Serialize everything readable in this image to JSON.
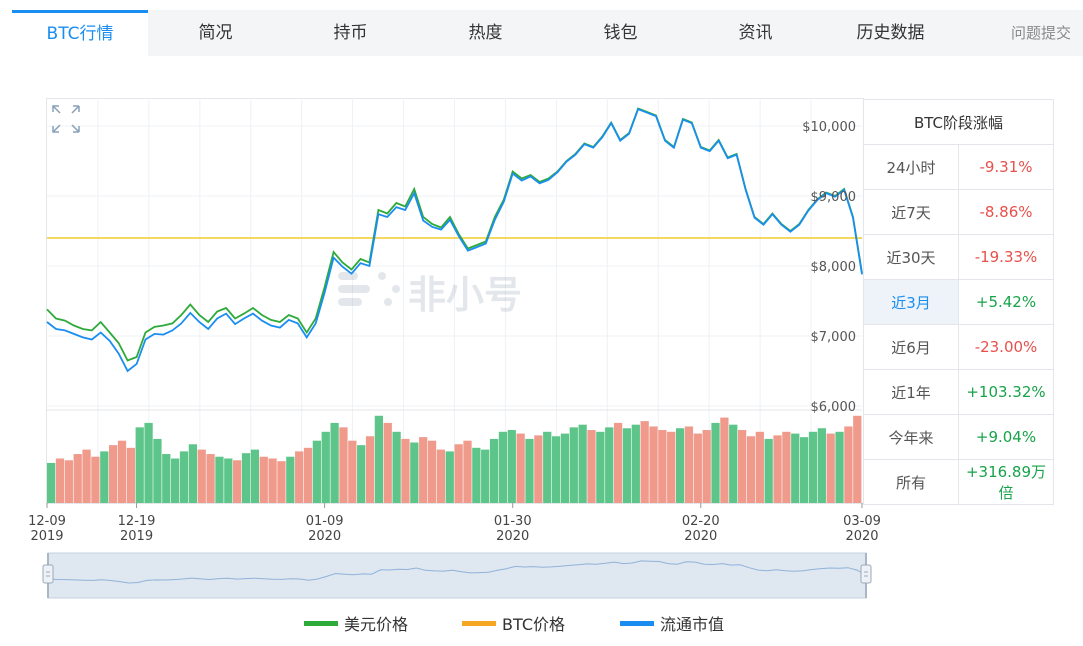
{
  "tabs": [
    {
      "label": "BTC行情",
      "active": true
    },
    {
      "label": "简况"
    },
    {
      "label": "持币"
    },
    {
      "label": "热度"
    },
    {
      "label": "钱包"
    },
    {
      "label": "资讯"
    },
    {
      "label": "历史数据"
    }
  ],
  "report_link": "问题提交",
  "watermark": "非小号",
  "colors": {
    "usd_line": "#2eaa3a",
    "btc_line": "#f5a623",
    "mcap_line": "#1a8ef0",
    "ref_line": "#f2cc2a",
    "vol_up": "#5ec58a",
    "vol_down": "#f09a8c",
    "accent": "#1a8ef0"
  },
  "chart_data": {
    "type": "line",
    "y_ticks": [
      "$10,000",
      "$9,000",
      "$8,000",
      "$7,000",
      "$6,000"
    ],
    "y_tick_values": [
      10000,
      9000,
      8000,
      7000,
      6000
    ],
    "ylim": [
      6000,
      10400
    ],
    "x_ticks": [
      {
        "date": "12-09",
        "year": "2019",
        "day": 0
      },
      {
        "date": "12-19",
        "year": "2019",
        "day": 10
      },
      {
        "date": "01-09",
        "year": "2020",
        "day": 31
      },
      {
        "date": "01-30",
        "year": "2020",
        "day": 52
      },
      {
        "date": "02-20",
        "year": "2020",
        "day": 73
      },
      {
        "date": "03-09",
        "year": "2020",
        "day": 91
      }
    ],
    "reference_price": 8400,
    "series": [
      {
        "name": "美元价格",
        "x": [
          0,
          1,
          2,
          3,
          4,
          5,
          6,
          7,
          8,
          9,
          10,
          11,
          12,
          13,
          14,
          15,
          16,
          17,
          18,
          19,
          20,
          21,
          22,
          23,
          24,
          25,
          26,
          27,
          28,
          29,
          30,
          31,
          32,
          33,
          34,
          35,
          36,
          37,
          38,
          39,
          40,
          41,
          42,
          43,
          44,
          45,
          46,
          47,
          48,
          49,
          50,
          51,
          52,
          53,
          54,
          55,
          56,
          57,
          58,
          59,
          60,
          61,
          62,
          63,
          64,
          65,
          66,
          67,
          68,
          69,
          70,
          71,
          72,
          73,
          74,
          75,
          76,
          77,
          78,
          79,
          80,
          81,
          82,
          83,
          84,
          85,
          86,
          87,
          88,
          89,
          90,
          91
        ],
        "values": [
          7380,
          7250,
          7220,
          7150,
          7100,
          7080,
          7200,
          7050,
          6900,
          6650,
          6700,
          7050,
          7130,
          7150,
          7180,
          7300,
          7450,
          7300,
          7200,
          7350,
          7400,
          7250,
          7320,
          7400,
          7300,
          7230,
          7200,
          7300,
          7250,
          7050,
          7250,
          7700,
          8200,
          8050,
          7950,
          8100,
          8050,
          8800,
          8750,
          8900,
          8850,
          9100,
          8700,
          8600,
          8550,
          8700,
          8450,
          8250,
          8300,
          8350,
          8700,
          8950,
          9350,
          9250,
          9300,
          9200,
          9250,
          9350,
          9500,
          9600,
          9750,
          9700,
          9850,
          10050,
          9800,
          9900,
          10250,
          10200,
          10150,
          9800,
          9700,
          10100,
          10050,
          9700,
          9650,
          9800,
          9550,
          9600,
          9100,
          8700,
          8600,
          8750,
          8600,
          8500,
          8600,
          8800,
          8950,
          9050,
          9000,
          9100,
          8700,
          7900
        ]
      },
      {
        "name": "流通市值",
        "x": [
          0,
          1,
          2,
          3,
          4,
          5,
          6,
          7,
          8,
          9,
          10,
          11,
          12,
          13,
          14,
          15,
          16,
          17,
          18,
          19,
          20,
          21,
          22,
          23,
          24,
          25,
          26,
          27,
          28,
          29,
          30,
          31,
          32,
          33,
          34,
          35,
          36,
          37,
          38,
          39,
          40,
          41,
          42,
          43,
          44,
          45,
          46,
          47,
          48,
          49,
          50,
          51,
          52,
          53,
          54,
          55,
          56,
          57,
          58,
          59,
          60,
          61,
          62,
          63,
          64,
          65,
          66,
          67,
          68,
          69,
          70,
          71,
          72,
          73,
          74,
          75,
          76,
          77,
          78,
          79,
          80,
          81,
          82,
          83,
          84,
          85,
          86,
          87,
          88,
          89,
          90,
          91
        ],
        "values": [
          7200,
          7100,
          7080,
          7030,
          6980,
          6950,
          7050,
          6930,
          6750,
          6500,
          6600,
          6950,
          7030,
          7020,
          7080,
          7180,
          7330,
          7200,
          7100,
          7250,
          7320,
          7170,
          7250,
          7320,
          7220,
          7150,
          7120,
          7230,
          7180,
          6980,
          7180,
          7620,
          8120,
          7990,
          7890,
          8040,
          8000,
          8740,
          8700,
          8840,
          8800,
          9040,
          8650,
          8560,
          8520,
          8660,
          8420,
          8220,
          8270,
          8320,
          8660,
          8920,
          9320,
          9220,
          9280,
          9180,
          9230,
          9340,
          9490,
          9590,
          9740,
          9690,
          9840,
          10040,
          9790,
          9890,
          10240,
          10190,
          10140,
          9790,
          9690,
          10090,
          10040,
          9690,
          9640,
          9790,
          9540,
          9590,
          9090,
          8690,
          8590,
          8740,
          8590,
          8490,
          8590,
          8790,
          8940,
          9040,
          8990,
          9090,
          8690,
          7880
        ]
      }
    ],
    "volume": [
      0.45,
      0.5,
      0.48,
      0.55,
      0.6,
      0.52,
      0.58,
      0.65,
      0.7,
      0.62,
      0.85,
      0.9,
      0.72,
      0.55,
      0.5,
      0.58,
      0.66,
      0.6,
      0.55,
      0.52,
      0.5,
      0.48,
      0.56,
      0.6,
      0.52,
      0.5,
      0.47,
      0.52,
      0.58,
      0.62,
      0.7,
      0.8,
      0.9,
      0.85,
      0.7,
      0.65,
      0.75,
      0.98,
      0.9,
      0.8,
      0.72,
      0.68,
      0.74,
      0.7,
      0.6,
      0.58,
      0.66,
      0.7,
      0.62,
      0.6,
      0.72,
      0.8,
      0.82,
      0.78,
      0.72,
      0.76,
      0.8,
      0.75,
      0.78,
      0.85,
      0.88,
      0.82,
      0.8,
      0.85,
      0.9,
      0.84,
      0.88,
      0.92,
      0.86,
      0.82,
      0.8,
      0.84,
      0.86,
      0.78,
      0.82,
      0.9,
      0.96,
      0.88,
      0.82,
      0.75,
      0.8,
      0.72,
      0.76,
      0.8,
      0.78,
      0.74,
      0.8,
      0.84,
      0.78,
      0.8,
      0.86,
      0.98
    ]
  },
  "performance": {
    "title": "BTC阶段涨幅",
    "rows": [
      {
        "label": "24小时",
        "value": "-9.31%",
        "dir": "neg"
      },
      {
        "label": "近7天",
        "value": "-8.86%",
        "dir": "neg"
      },
      {
        "label": "近30天",
        "value": "-19.33%",
        "dir": "neg"
      },
      {
        "label": "近3月",
        "value": "+5.42%",
        "dir": "pos",
        "selected": true
      },
      {
        "label": "近6月",
        "value": "-23.00%",
        "dir": "neg"
      },
      {
        "label": "近1年",
        "value": "+103.32%",
        "dir": "pos"
      },
      {
        "label": "今年来",
        "value": "+9.04%",
        "dir": "pos"
      },
      {
        "label": "所有",
        "value": "+316.89万倍",
        "dir": "pos"
      }
    ]
  },
  "legend": [
    {
      "label": "美元价格",
      "color": "#2eaa3a"
    },
    {
      "label": "BTC价格",
      "color": "#f5a623"
    },
    {
      "label": "流通市值",
      "color": "#1a8ef0"
    }
  ]
}
